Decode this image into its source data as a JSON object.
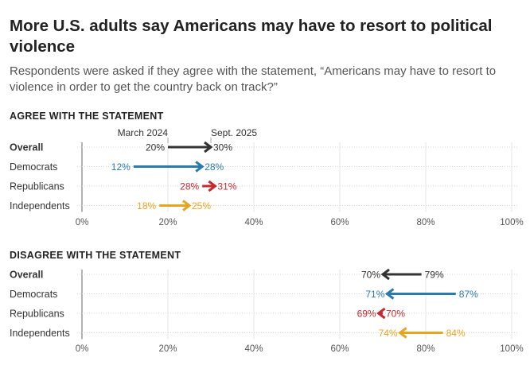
{
  "title": "More U.S. adults say Americans may have to resort to political violence",
  "subtitle": "Respondents were asked if they agree with the statement, “Americans may have to resort to violence in order to get the country back on track?”",
  "colors": {
    "Overall": "#333333",
    "Democrats": "#2a7aac",
    "Republicans": "#c42a2e",
    "Independents": "#e9a31d"
  },
  "chart_data": [
    {
      "type": "arrow-dot",
      "title": "AGREE WITH THE STATEMENT",
      "start_label": "March 2024",
      "end_label": "Sept. 2025",
      "xlim": [
        0,
        100
      ],
      "x_ticks": [
        "0%",
        "20%",
        "40%",
        "60%",
        "80%",
        "100%"
      ],
      "x_tick_values": [
        0,
        20,
        40,
        60,
        80,
        100
      ],
      "categories": [
        "Overall",
        "Democrats",
        "Republicans",
        "Independents"
      ],
      "series": [
        {
          "name": "March 2024",
          "values": [
            20,
            12,
            28,
            18
          ]
        },
        {
          "name": "Sept. 2025",
          "values": [
            30,
            28,
            31,
            25
          ]
        }
      ],
      "grid": true
    },
    {
      "type": "arrow-dot",
      "title": "DISAGREE WITH THE STATEMENT",
      "start_label": "March 2024",
      "end_label": "Sept. 2025",
      "xlim": [
        0,
        100
      ],
      "x_ticks": [
        "0%",
        "20%",
        "40%",
        "60%",
        "80%",
        "100%"
      ],
      "x_tick_values": [
        0,
        20,
        40,
        60,
        80,
        100
      ],
      "categories": [
        "Overall",
        "Democrats",
        "Republicans",
        "Independents"
      ],
      "series": [
        {
          "name": "March 2024",
          "values": [
            79,
            87,
            70,
            84
          ]
        },
        {
          "name": "Sept. 2025",
          "values": [
            70,
            71,
            69,
            74
          ]
        }
      ],
      "grid": true
    }
  ]
}
